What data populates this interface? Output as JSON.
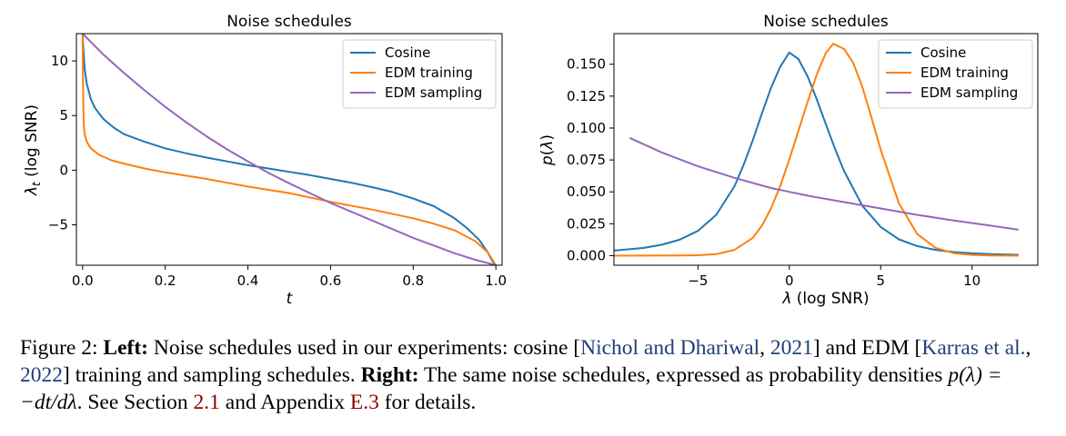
{
  "chart_data": [
    {
      "type": "line",
      "title": "Noise schedules",
      "xlabel": "t",
      "ylabel_symbol": "λ",
      "ylabel_subscript": "t",
      "ylabel_suffix": " (log SNR)",
      "xlim": [
        -0.015,
        1.015
      ],
      "ylim": [
        -8.7,
        12.5
      ],
      "xticks": [
        0.0,
        0.2,
        0.4,
        0.6,
        0.8,
        1.0
      ],
      "xtick_labels": [
        "0.0",
        "0.2",
        "0.4",
        "0.6",
        "0.8",
        "1.0"
      ],
      "yticks": [
        -5,
        0,
        5,
        10
      ],
      "ytick_labels": [
        "−5",
        "0",
        "5",
        "10"
      ],
      "grid": false,
      "legend_placement": "top-right",
      "series": [
        {
          "name": "Cosine",
          "color": "#1f77b4",
          "x": [
            0.0,
            0.002,
            0.005,
            0.01,
            0.02,
            0.03,
            0.05,
            0.075,
            0.1,
            0.15,
            0.2,
            0.25,
            0.3,
            0.35,
            0.4,
            0.45,
            0.5,
            0.55,
            0.6,
            0.65,
            0.7,
            0.75,
            0.8,
            0.85,
            0.9,
            0.93,
            0.96,
            0.98,
            0.99,
            0.995,
            1.0
          ],
          "y": [
            12.5,
            11.0,
            9.3,
            7.9,
            6.5,
            5.7,
            4.7,
            3.9,
            3.3,
            2.6,
            2.0,
            1.55,
            1.15,
            0.8,
            0.45,
            0.15,
            -0.15,
            -0.45,
            -0.8,
            -1.15,
            -1.55,
            -2.0,
            -2.6,
            -3.3,
            -4.4,
            -5.3,
            -6.4,
            -7.5,
            -8.2,
            -8.5,
            -8.7
          ]
        },
        {
          "name": "EDM training",
          "color": "#ff7f0e",
          "x": [
            0.0,
            0.001,
            0.002,
            0.003,
            0.005,
            0.01,
            0.02,
            0.04,
            0.07,
            0.1,
            0.15,
            0.2,
            0.3,
            0.4,
            0.5,
            0.6,
            0.7,
            0.8,
            0.85,
            0.9,
            0.95,
            0.98,
            1.0
          ],
          "y": [
            12.5,
            8.0,
            5.5,
            4.0,
            3.3,
            2.6,
            2.0,
            1.4,
            0.9,
            0.6,
            0.15,
            -0.2,
            -0.8,
            -1.5,
            -2.1,
            -2.9,
            -3.6,
            -4.4,
            -4.9,
            -5.5,
            -6.5,
            -7.5,
            -8.7
          ]
        },
        {
          "name": "EDM sampling",
          "color": "#9467bd",
          "x": [
            0.0,
            0.05,
            0.1,
            0.15,
            0.2,
            0.25,
            0.3,
            0.35,
            0.4,
            0.45,
            0.5,
            0.55,
            0.6,
            0.65,
            0.7,
            0.75,
            0.8,
            0.85,
            0.9,
            0.95,
            1.0
          ],
          "y": [
            12.5,
            10.6,
            8.9,
            7.3,
            5.8,
            4.4,
            3.1,
            1.9,
            0.8,
            -0.25,
            -1.2,
            -2.1,
            -3.0,
            -3.8,
            -4.6,
            -5.4,
            -6.2,
            -6.9,
            -7.6,
            -8.2,
            -8.7
          ]
        }
      ]
    },
    {
      "type": "line",
      "title": "Noise schedules",
      "xlabel": "λ (log SNR)",
      "ylabel": "p(λ)",
      "xlim": [
        -9.6,
        13.6
      ],
      "ylim": [
        -0.0075,
        0.174
      ],
      "xticks": [
        -5,
        0,
        5,
        10
      ],
      "xtick_labels": [
        "−5",
        "0",
        "5",
        "10"
      ],
      "yticks": [
        0.0,
        0.025,
        0.05,
        0.075,
        0.1,
        0.125,
        0.15
      ],
      "ytick_labels": [
        "0.000",
        "0.025",
        "0.050",
        "0.075",
        "0.100",
        "0.125",
        "0.150"
      ],
      "grid": false,
      "legend_placement": "top-right",
      "series": [
        {
          "name": "Cosine",
          "color": "#1f77b4",
          "x": [
            -9.7,
            -8,
            -7,
            -6,
            -5,
            -4,
            -3,
            -2.5,
            -2,
            -1.5,
            -1,
            -0.5,
            0,
            0.5,
            1,
            1.5,
            2,
            2.5,
            3,
            4,
            5,
            6,
            7,
            8,
            9,
            10,
            11,
            12.5
          ],
          "y": [
            0.0038,
            0.006,
            0.0085,
            0.0125,
            0.0195,
            0.032,
            0.0545,
            0.0712,
            0.0905,
            0.1115,
            0.1315,
            0.148,
            0.1592,
            0.154,
            0.1405,
            0.1225,
            0.103,
            0.0838,
            0.0662,
            0.039,
            0.0225,
            0.0128,
            0.0075,
            0.0045,
            0.0028,
            0.0018,
            0.0012,
            0.0007
          ]
        },
        {
          "name": "EDM training",
          "color": "#ff7f0e",
          "x": [
            -9.7,
            -6,
            -5,
            -4,
            -3,
            -2,
            -1.5,
            -1,
            -0.5,
            0,
            0.5,
            1,
            1.5,
            2,
            2.4,
            3,
            3.5,
            4,
            4.5,
            5,
            6,
            7,
            8,
            9,
            10,
            11,
            12.5
          ],
          "y": [
            0.0,
            0.0001,
            0.0003,
            0.0012,
            0.0045,
            0.014,
            0.0235,
            0.037,
            0.0545,
            0.0755,
            0.098,
            0.1205,
            0.142,
            0.159,
            0.166,
            0.162,
            0.151,
            0.132,
            0.108,
            0.083,
            0.041,
            0.017,
            0.0062,
            0.002,
            0.0006,
            0.0002,
            0.0
          ]
        },
        {
          "name": "EDM sampling",
          "color": "#9467bd",
          "x": [
            -8.7,
            -7,
            -5,
            -3,
            -1,
            0,
            1,
            3,
            5,
            7,
            9,
            11,
            12.5
          ],
          "y": [
            0.092,
            0.081,
            0.07,
            0.061,
            0.053,
            0.05,
            0.047,
            0.042,
            0.037,
            0.032,
            0.0275,
            0.0235,
            0.0205
          ]
        }
      ]
    }
  ],
  "caption": {
    "fig_label": "Figure 2: ",
    "left_label": "Left:",
    "text1": " Noise schedules used in our experiments: cosine [",
    "ref1_authors": "Nichol and Dhariwal",
    "sep1": ", ",
    "ref1_year": "2021",
    "text2": "] and EDM [",
    "ref2_authors": "Karras et al.",
    "sep2": ", ",
    "ref2_year": "2022",
    "text3": "] training and sampling schedules. ",
    "right_label": "Right:",
    "text4": " The same noise schedules, expressed as probability densities ",
    "formula": "p(λ) = −dt/dλ",
    "text5": ". See Section ",
    "section_ref": "2.1",
    "text6": " and Appendix ",
    "appendix_ref": "E.3",
    "text7": " for details."
  }
}
